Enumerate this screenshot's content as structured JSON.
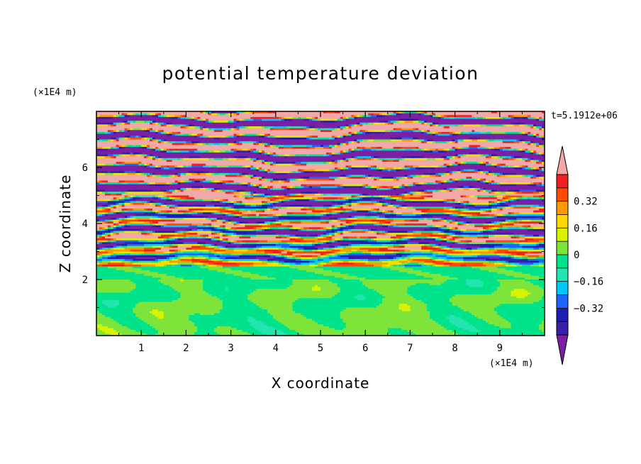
{
  "chart_data": {
    "type": "heatmap",
    "title": "potential temperature deviation",
    "xlabel": "X coordinate",
    "ylabel": "Z coordinate",
    "x_unit": "(×1E4 m)",
    "y_unit": "(×1E4 m)",
    "time_label": "t=5.1912e+06",
    "x_range": [
      0,
      10
    ],
    "y_range": [
      0,
      8
    ],
    "x_ticks": [
      "1",
      "2",
      "3",
      "4",
      "5",
      "6",
      "7",
      "8",
      "9"
    ],
    "y_ticks": [
      "2",
      "4",
      "6"
    ],
    "colorbar": {
      "levels": [
        -0.48,
        -0.4,
        -0.32,
        -0.24,
        -0.16,
        -0.08,
        0,
        0.08,
        0.16,
        0.24,
        0.32,
        0.4,
        0.48
      ],
      "labels": [
        "0.32",
        "0.16",
        "0",
        "−0.16",
        "−0.32"
      ],
      "label_values": [
        0.32,
        0.16,
        0,
        -0.16,
        -0.32
      ],
      "colors": [
        "#7b1fa5",
        "#3c1fa8",
        "#1e1eb4",
        "#1e64ff",
        "#00c8ff",
        "#22e5b0",
        "#00e38a",
        "#7fe43a",
        "#d9f200",
        "#ffd800",
        "#ff9a00",
        "#ff4a00",
        "#f02020",
        "#f2a8a8"
      ],
      "extend": "both"
    },
    "regions": [
      {
        "z_range": [
          0,
          2.0
        ],
        "description_value": "near zero (-0.08 to 0.08)"
      },
      {
        "z_range": [
          2.0,
          2.5
        ],
        "description_value": "slightly negative (-0.08 to 0)"
      },
      {
        "z_range": [
          2.5,
          5.0
        ],
        "description_value": "mixed bands -0.48 to 0.48"
      },
      {
        "z_range": [
          5.0,
          8.0
        ],
        "description_value": "alternating bands: <-0.48 and >0.48"
      }
    ]
  }
}
